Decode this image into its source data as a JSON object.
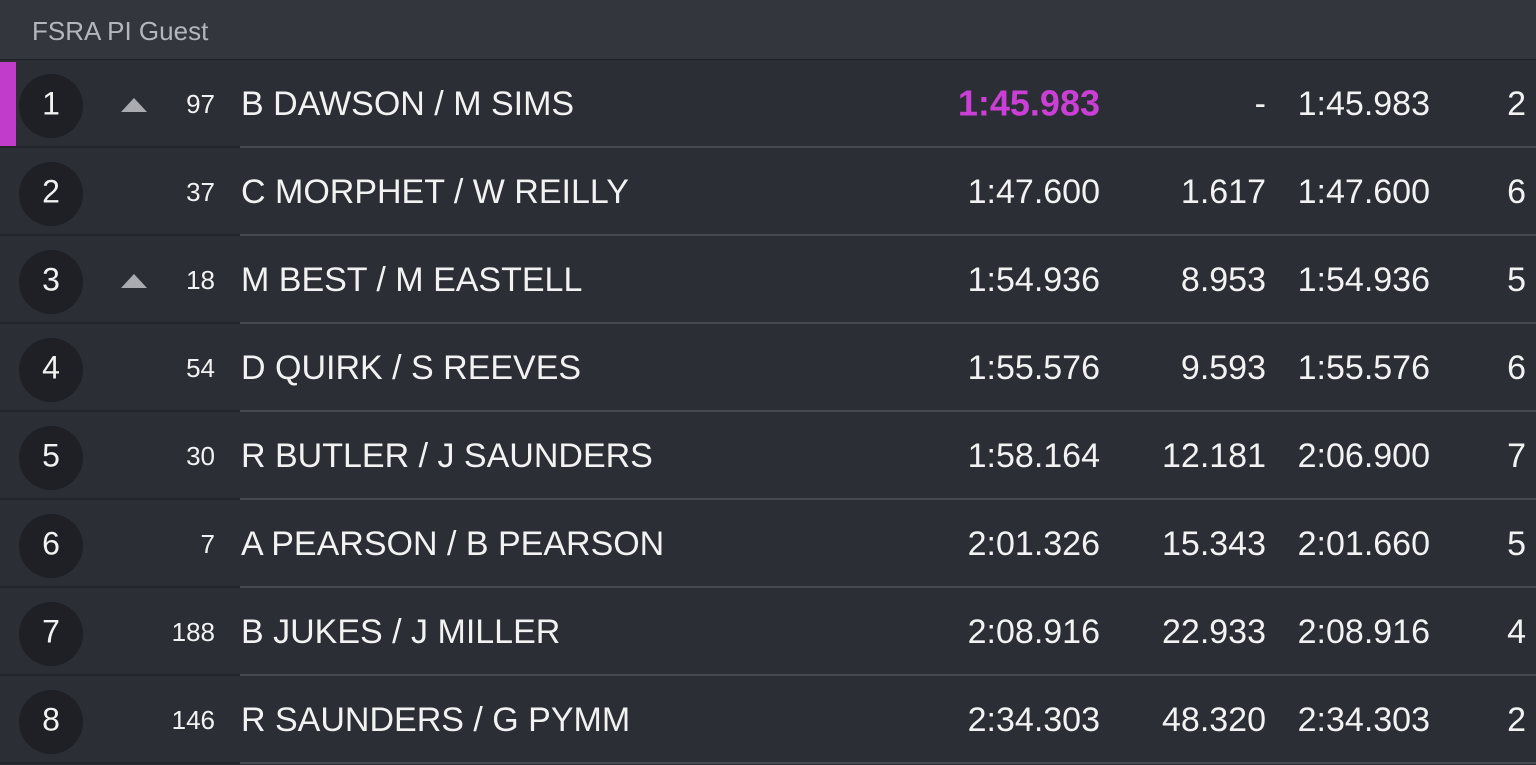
{
  "header": {
    "title": "FSRA PI Guest"
  },
  "rows": [
    {
      "pos": 1,
      "gained": true,
      "num": 97,
      "name": "B DAWSON / M SIMS",
      "best": "1:45.983",
      "gap": "-",
      "last": "1:45.983",
      "laps": 2,
      "highlight": true
    },
    {
      "pos": 2,
      "gained": false,
      "num": 37,
      "name": "C MORPHET / W REILLY",
      "best": "1:47.600",
      "gap": "1.617",
      "last": "1:47.600",
      "laps": 6
    },
    {
      "pos": 3,
      "gained": true,
      "num": 18,
      "name": "M BEST / M EASTELL",
      "best": "1:54.936",
      "gap": "8.953",
      "last": "1:54.936",
      "laps": 5
    },
    {
      "pos": 4,
      "gained": false,
      "num": 54,
      "name": "D QUIRK / S REEVES",
      "best": "1:55.576",
      "gap": "9.593",
      "last": "1:55.576",
      "laps": 6
    },
    {
      "pos": 5,
      "gained": false,
      "num": 30,
      "name": "R BUTLER / J SAUNDERS",
      "best": "1:58.164",
      "gap": "12.181",
      "last": "2:06.900",
      "laps": 7
    },
    {
      "pos": 6,
      "gained": false,
      "num": 7,
      "name": "A PEARSON / B PEARSON",
      "best": "2:01.326",
      "gap": "15.343",
      "last": "2:01.660",
      "laps": 5
    },
    {
      "pos": 7,
      "gained": false,
      "num": 188,
      "name": "B JUKES / J MILLER",
      "best": "2:08.916",
      "gap": "22.933",
      "last": "2:08.916",
      "laps": 4
    },
    {
      "pos": 8,
      "gained": false,
      "num": 146,
      "name": "R SAUNDERS / G PYMM",
      "best": "2:34.303",
      "gap": "48.320",
      "last": "2:34.303",
      "laps": 2
    }
  ]
}
